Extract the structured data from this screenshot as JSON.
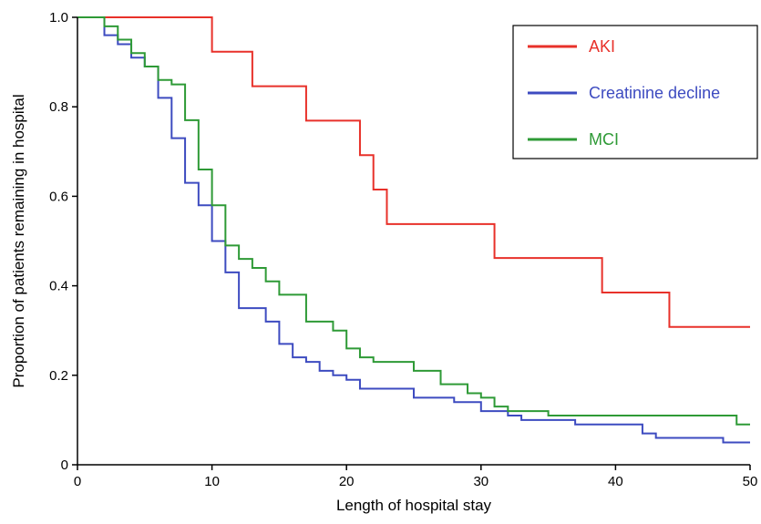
{
  "chart_data": {
    "type": "line",
    "step": true,
    "xlabel": "Length of hospital stay",
    "ylabel": "Proportion of patients remaining in hospital",
    "xlim": [
      0,
      50
    ],
    "ylim": [
      0,
      1.0
    ],
    "xticks": [
      0,
      10,
      20,
      30,
      40,
      50
    ],
    "yticks": [
      0,
      0.2,
      0.4,
      0.6,
      0.8,
      1.0
    ],
    "xtick_labels": [
      "0",
      "10",
      "20",
      "30",
      "40",
      "50"
    ],
    "ytick_labels": [
      "0",
      "0.2",
      "0.4",
      "0.6",
      "0.8",
      "1.0"
    ],
    "grid": false,
    "legend_position": "top-right",
    "series": [
      {
        "name": "AKI",
        "color": "#e8312a",
        "x": [
          0,
          10,
          13,
          17,
          21,
          22,
          23,
          31,
          39,
          44,
          50
        ],
        "y": [
          1.0,
          0.923,
          0.846,
          0.769,
          0.692,
          0.615,
          0.538,
          0.462,
          0.385,
          0.308,
          0.308
        ]
      },
      {
        "name": "Creatinine decline",
        "color": "#3d4bc0",
        "x": [
          0,
          2,
          3,
          4,
          5,
          6,
          7,
          8,
          9,
          10,
          11,
          12,
          14,
          15,
          16,
          17,
          18,
          19,
          20,
          21,
          25,
          28,
          30,
          32,
          33,
          35,
          37,
          42,
          43,
          48,
          50
        ],
        "y": [
          1.0,
          0.96,
          0.94,
          0.91,
          0.89,
          0.82,
          0.73,
          0.63,
          0.58,
          0.5,
          0.43,
          0.35,
          0.32,
          0.27,
          0.24,
          0.23,
          0.21,
          0.2,
          0.19,
          0.17,
          0.15,
          0.14,
          0.12,
          0.11,
          0.1,
          0.1,
          0.09,
          0.07,
          0.06,
          0.05,
          0.05
        ]
      },
      {
        "name": "MCI",
        "color": "#2e9a36",
        "x": [
          0,
          2,
          3,
          4,
          5,
          6,
          7,
          8,
          9,
          10,
          11,
          12,
          13,
          14,
          15,
          17,
          19,
          20,
          21,
          22,
          25,
          27,
          29,
          30,
          31,
          32,
          35,
          49,
          50
        ],
        "y": [
          1.0,
          0.98,
          0.95,
          0.92,
          0.89,
          0.86,
          0.85,
          0.77,
          0.66,
          0.58,
          0.49,
          0.46,
          0.44,
          0.41,
          0.38,
          0.32,
          0.3,
          0.26,
          0.24,
          0.23,
          0.21,
          0.18,
          0.16,
          0.15,
          0.13,
          0.12,
          0.11,
          0.09,
          0.09
        ]
      }
    ]
  }
}
